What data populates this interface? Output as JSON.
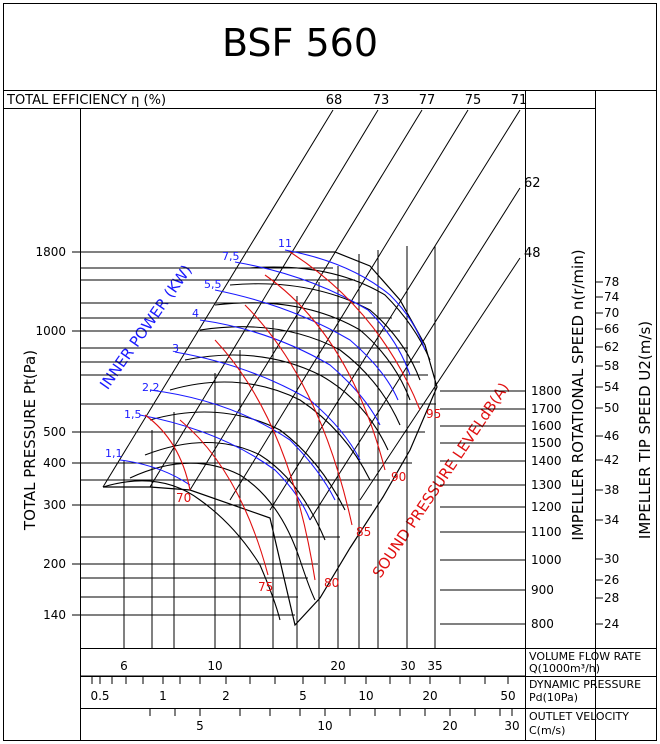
{
  "title": "BSF 560",
  "efficiency_header": "TOTAL EFFICIENCY η (%)",
  "efficiency_labels": [
    "68",
    "73",
    "77",
    "75",
    "71",
    "62",
    "48"
  ],
  "y_axis_label": "TOTAL PRESSURE Pt(Pa)",
  "y_ticks": [
    "1800",
    "1000",
    "500",
    "400",
    "300",
    "200",
    "140"
  ],
  "power_label": "INNER POWER (KW)",
  "power_values": [
    "1,1",
    "1,5",
    "2,2",
    "3",
    "4",
    "5,5",
    "7,5",
    "11"
  ],
  "sound_label": "SOUND PRESSURE LEVELdB(A)",
  "sound_values": [
    "70",
    "75",
    "80",
    "85",
    "90",
    "95"
  ],
  "speed_label": "IMPELLER ROTATIONAL SPEED n(r/min)",
  "speed_values": [
    "1800",
    "1700",
    "1600",
    "1500",
    "1400",
    "1300",
    "1200",
    "1100",
    "1000",
    "900",
    "800"
  ],
  "tip_label": "IMPELLER TIP SPEED U2(m/s)",
  "tip_values": [
    "78",
    "74",
    "70",
    "66",
    "62",
    "58",
    "54",
    "50",
    "46",
    "42",
    "38",
    "34",
    "30",
    "26",
    "28",
    "24"
  ],
  "flow_scale": {
    "label_line1": "VOLUME FLOW RATE",
    "label_line2": "Q(1000m³/h)",
    "ticks": [
      "6",
      "10",
      "20",
      "30",
      "35"
    ]
  },
  "dynamic_scale": {
    "label_line1": "DYNAMIC PRESSURE",
    "label_line2": "Pd(10Pa)",
    "ticks": [
      "0.5",
      "1",
      "2",
      "5",
      "10",
      "20",
      "50"
    ]
  },
  "velocity_scale": {
    "label_line1": "OUTLET VELOCITY",
    "label_line2": "C(m/s)",
    "ticks": [
      "5",
      "10",
      "20",
      "30"
    ]
  },
  "colors": {
    "line": "#000000",
    "power": "#1a1aff",
    "sound": "#e01010"
  },
  "chart_data": {
    "type": "line",
    "title": "BSF 560",
    "xlabel": "VOLUME FLOW RATE Q(1000m³/h)",
    "ylabel": "TOTAL PRESSURE Pt(Pa)",
    "x_scale": "log",
    "y_scale": "log",
    "xlim": [
      5,
      38
    ],
    "ylim": [
      140,
      1800
    ],
    "x_ticks": [
      6,
      10,
      20,
      30,
      35
    ],
    "y_ticks": [
      140,
      200,
      300,
      400,
      500,
      1000,
      1800
    ],
    "rotational_speed_rpm": [
      800,
      900,
      1000,
      1100,
      1200,
      1300,
      1400,
      1500,
      1600,
      1700,
      1800
    ],
    "inner_power_kw": [
      1.1,
      1.5,
      2.2,
      3,
      4,
      5.5,
      7.5,
      11
    ],
    "sound_pressure_dba": [
      70,
      75,
      80,
      85,
      90,
      95
    ],
    "total_efficiency_pct": [
      68,
      73,
      77,
      75,
      71,
      62,
      48
    ],
    "impeller_tip_speed_ms": [
      78,
      74,
      70,
      66,
      62,
      58,
      54,
      50,
      46,
      42,
      38,
      34,
      30,
      26,
      28,
      24
    ],
    "dynamic_pressure_10pa_ticks": [
      0.5,
      1,
      2,
      5,
      10,
      20,
      50
    ],
    "outlet_velocity_ms_ticks": [
      5,
      10,
      20,
      30
    ]
  }
}
